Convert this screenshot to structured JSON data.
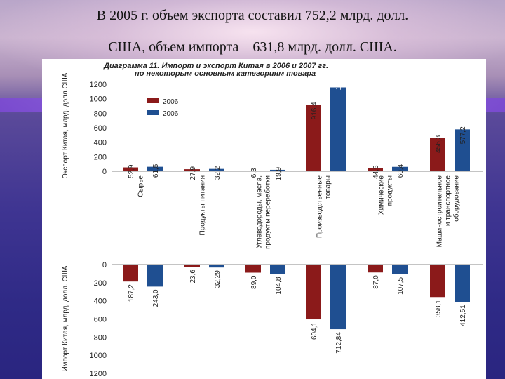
{
  "slide": {
    "line1": "В 2005 г. объем экспорта составил 752,2 млрд. долл.",
    "line2": "США, объем импорта – 631,8 млрд. долл. США."
  },
  "colors": {
    "series_2006": "#8b1a1a",
    "series_2007": "#1f4f91"
  },
  "chart_data": [
    {
      "type": "bar",
      "title": "Диаграмма 11. Импорт и экспорт Китая в 2006 и 2007 гг. по некоторым основным категориям товара",
      "title_lines": [
        "Диаграмма 11. Импорт и экспорт Китая в 2006 и 2007 гг.",
        "по некоторым основным категориям товара"
      ],
      "ylabel": "Экспорт Китая, млрд. долл.США",
      "ylim": [
        0,
        1200
      ],
      "yticks": [
        "0",
        "200",
        "400",
        "600",
        "800",
        "1000",
        "1200"
      ],
      "legend": {
        "position": "top-left",
        "entries": [
          "2006",
          "2006"
        ]
      },
      "categories": [
        [
          "Сырье"
        ],
        [
          "Продукты питания"
        ],
        [
          "Углеводороды, масла,",
          "продукты переработки"
        ],
        [
          "Производственные",
          "товары"
        ],
        [
          "Химические",
          "продукты"
        ],
        [
          "Машиностроительное",
          "и транспортное",
          "оборудование"
        ]
      ],
      "series": [
        {
          "values": [
            52.9,
            27.9,
            6.3,
            916.4,
            44.5,
            456.3
          ],
          "labels": [
            "52,9",
            "27,9",
            "6,3",
            "916,4",
            "44,5",
            "456,3"
          ]
        },
        {
          "values": [
            61.5,
            32.2,
            19.9,
            1156.5,
            60.4,
            577.2
          ],
          "labels": [
            "61,5",
            "32,2",
            "19,9",
            "1156,5",
            "60,4",
            "577,2"
          ]
        }
      ]
    },
    {
      "type": "bar",
      "ylabel": "Импорт Китая, млрд. долл. США",
      "ylim": [
        0,
        1200
      ],
      "yticks": [
        "0",
        "200",
        "400",
        "600",
        "800",
        "1000",
        "1200"
      ],
      "y_inverted": true,
      "series": [
        {
          "values": [
            187.2,
            23.6,
            89.0,
            604.1,
            87.0,
            358.1
          ],
          "labels": [
            "187,2",
            "23,6",
            "89,0",
            "604,1",
            "87,0",
            "358,1"
          ]
        },
        {
          "values": [
            243.0,
            32.29,
            104.8,
            712.84,
            107.5,
            412.51
          ],
          "labels": [
            "243,0",
            "32,29",
            "104,8",
            "712,84",
            "107,5",
            "412,51"
          ]
        }
      ]
    }
  ]
}
